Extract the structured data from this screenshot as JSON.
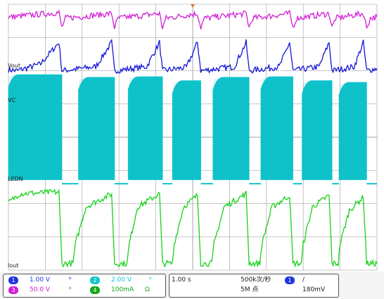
{
  "chart_data": {
    "type": "line",
    "title": "",
    "xlabel": "",
    "ylabel": "",
    "x_unit": "divisions",
    "xlim": [
      0,
      10
    ],
    "ylim": [
      -4,
      4
    ],
    "grid": true,
    "trigger_marker": "top",
    "series": [
      {
        "name": "Vout",
        "color": "#1414d6",
        "points": [
          [
            0.0,
            2.03
          ],
          [
            0.23,
            2.0
          ],
          [
            0.87,
            2.2
          ],
          [
            1.37,
            2.85
          ],
          [
            1.45,
            2.0
          ],
          [
            2.37,
            2.12
          ],
          [
            2.8,
            2.85
          ],
          [
            2.88,
            2.0
          ],
          [
            3.75,
            2.12
          ],
          [
            4.1,
            2.85
          ],
          [
            4.18,
            2.0
          ],
          [
            4.83,
            2.1
          ],
          [
            5.13,
            2.85
          ],
          [
            5.22,
            2.0
          ],
          [
            6.13,
            2.12
          ],
          [
            6.45,
            2.85
          ],
          [
            6.53,
            2.0
          ],
          [
            7.35,
            2.12
          ],
          [
            7.63,
            2.85
          ],
          [
            7.72,
            2.0
          ],
          [
            8.43,
            2.12
          ],
          [
            8.7,
            2.85
          ],
          [
            8.78,
            2.0
          ],
          [
            9.38,
            2.12
          ],
          [
            9.63,
            2.85
          ],
          [
            9.72,
            2.0
          ],
          [
            10.0,
            2.07
          ]
        ]
      },
      {
        "name": "VC",
        "color": "#10c4cc",
        "segments": [
          {
            "type": "burst",
            "x_start": 0.0,
            "x_end": 1.45,
            "top": 1.88,
            "bottom": -1.28
          },
          {
            "type": "level",
            "x_start": 1.45,
            "x_end": 1.9,
            "y": -1.4
          },
          {
            "type": "burst",
            "x_start": 1.9,
            "x_end": 2.88,
            "top": 1.8,
            "bottom": -1.28
          },
          {
            "type": "level",
            "x_start": 2.88,
            "x_end": 3.25,
            "y": -1.4
          },
          {
            "type": "burst",
            "x_start": 3.25,
            "x_end": 4.18,
            "top": 1.82,
            "bottom": -1.28
          },
          {
            "type": "level",
            "x_start": 4.18,
            "x_end": 4.45,
            "y": -1.4
          },
          {
            "type": "burst",
            "x_start": 4.45,
            "x_end": 5.22,
            "top": 1.7,
            "bottom": -1.28
          },
          {
            "type": "level",
            "x_start": 5.22,
            "x_end": 5.55,
            "y": -1.4
          },
          {
            "type": "burst",
            "x_start": 5.55,
            "x_end": 6.53,
            "top": 1.8,
            "bottom": -1.28
          },
          {
            "type": "level",
            "x_start": 6.53,
            "x_end": 6.85,
            "y": -1.4
          },
          {
            "type": "burst",
            "x_start": 6.85,
            "x_end": 7.72,
            "top": 1.82,
            "bottom": -1.28
          },
          {
            "type": "level",
            "x_start": 7.72,
            "x_end": 7.97,
            "y": -1.4
          },
          {
            "type": "burst",
            "x_start": 7.97,
            "x_end": 8.78,
            "top": 1.7,
            "bottom": -1.28
          },
          {
            "type": "level",
            "x_start": 8.78,
            "x_end": 8.97,
            "y": -1.4
          },
          {
            "type": "burst",
            "x_start": 8.97,
            "x_end": 9.72,
            "top": 1.65,
            "bottom": -1.28
          },
          {
            "type": "level",
            "x_start": 9.72,
            "x_end": 10.0,
            "y": -1.4
          }
        ]
      },
      {
        "name": "LEDN",
        "color": "#d21ed6",
        "points": [
          [
            0.0,
            3.61
          ],
          [
            1.37,
            3.75
          ],
          [
            1.45,
            3.3
          ],
          [
            1.55,
            3.58
          ],
          [
            2.8,
            3.72
          ],
          [
            2.88,
            3.3
          ],
          [
            2.98,
            3.58
          ],
          [
            4.1,
            3.72
          ],
          [
            4.18,
            3.3
          ],
          [
            4.28,
            3.58
          ],
          [
            5.13,
            3.72
          ],
          [
            5.22,
            3.3
          ],
          [
            5.32,
            3.58
          ],
          [
            6.45,
            3.72
          ],
          [
            6.53,
            3.3
          ],
          [
            6.63,
            3.58
          ],
          [
            7.63,
            3.72
          ],
          [
            7.72,
            3.3
          ],
          [
            7.82,
            3.58
          ],
          [
            8.7,
            3.72
          ],
          [
            8.78,
            3.3
          ],
          [
            8.88,
            3.58
          ],
          [
            9.63,
            3.72
          ],
          [
            9.72,
            3.3
          ],
          [
            9.82,
            3.58
          ],
          [
            10.0,
            3.62
          ]
        ]
      },
      {
        "name": "Iout",
        "color": "#14d218",
        "points": [
          [
            0.0,
            -1.97
          ],
          [
            0.3,
            -1.7
          ],
          [
            1.37,
            -1.65
          ],
          [
            1.45,
            -3.8
          ],
          [
            1.75,
            -3.8
          ],
          [
            1.82,
            -3.2
          ],
          [
            2.1,
            -2.1
          ],
          [
            2.8,
            -1.7
          ],
          [
            2.88,
            -3.8
          ],
          [
            3.22,
            -3.8
          ],
          [
            3.28,
            -3.2
          ],
          [
            3.5,
            -2.1
          ],
          [
            4.1,
            -1.7
          ],
          [
            4.18,
            -3.8
          ],
          [
            4.45,
            -3.8
          ],
          [
            4.5,
            -3.2
          ],
          [
            4.75,
            -2.1
          ],
          [
            5.13,
            -1.75
          ],
          [
            5.22,
            -3.8
          ],
          [
            5.52,
            -3.8
          ],
          [
            5.58,
            -3.2
          ],
          [
            5.85,
            -2.1
          ],
          [
            6.45,
            -1.7
          ],
          [
            6.53,
            -3.8
          ],
          [
            6.82,
            -3.8
          ],
          [
            6.88,
            -3.2
          ],
          [
            7.15,
            -2.1
          ],
          [
            7.63,
            -1.75
          ],
          [
            7.72,
            -3.8
          ],
          [
            7.95,
            -3.8
          ],
          [
            8.0,
            -3.2
          ],
          [
            8.25,
            -2.1
          ],
          [
            8.7,
            -1.75
          ],
          [
            8.78,
            -3.8
          ],
          [
            8.95,
            -3.8
          ],
          [
            9.0,
            -3.2
          ],
          [
            9.25,
            -2.2
          ],
          [
            9.63,
            -1.8
          ],
          [
            9.72,
            -3.8
          ],
          [
            10.0,
            -3.8
          ]
        ]
      }
    ],
    "channel_labels": [
      {
        "text": "Vout",
        "y": 2.02
      },
      {
        "text": "VC",
        "y": 0.98
      },
      {
        "text": "LEDN",
        "y": -1.4
      },
      {
        "text": "Iout",
        "y": -4.0
      }
    ]
  },
  "status_bar": {
    "channels": [
      {
        "num": "1",
        "scale": "1.00 V",
        "color": "#2233dd"
      },
      {
        "num": "2",
        "scale": "2.00 V",
        "color": "#10c4cc"
      },
      {
        "num": "3",
        "scale": "50.0 V",
        "color": "#d21ed6"
      },
      {
        "num": "4",
        "scale": "100mA",
        "color": "#14a818"
      }
    ],
    "timebase": "1.00 s",
    "sample_rate": "500k次/秒",
    "record_length": "5M 点",
    "trigger": {
      "num": "1",
      "slope": "/",
      "level": "180mV",
      "color": "#2233dd"
    }
  }
}
